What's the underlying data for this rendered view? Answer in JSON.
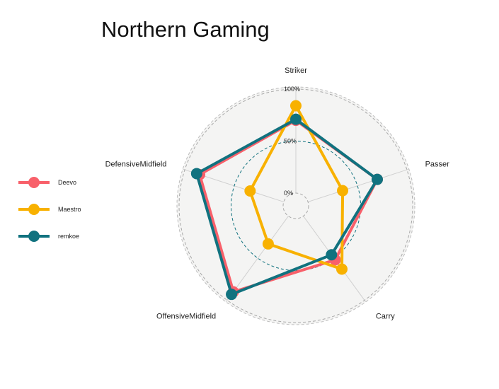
{
  "chart_data": {
    "type": "radar",
    "title": "Northern Gaming",
    "axes": [
      "Striker",
      "Passer",
      "Carry",
      "OffensiveMidfield",
      "DefensiveMidfield"
    ],
    "grid_labels": [
      "0%",
      "50%",
      "100%"
    ],
    "range": [
      0,
      100
    ],
    "legend_position": "left",
    "series": [
      {
        "name": "Deevo",
        "color": "#F8606A",
        "values": [
          70,
          70,
          52,
          90,
          85
        ]
      },
      {
        "name": "Maestro",
        "color": "#F8B100",
        "values": [
          84,
          35,
          63,
          33,
          34
        ]
      },
      {
        "name": "remkoe",
        "color": "#11727F",
        "values": [
          71,
          70,
          46,
          93,
          88
        ]
      }
    ]
  }
}
